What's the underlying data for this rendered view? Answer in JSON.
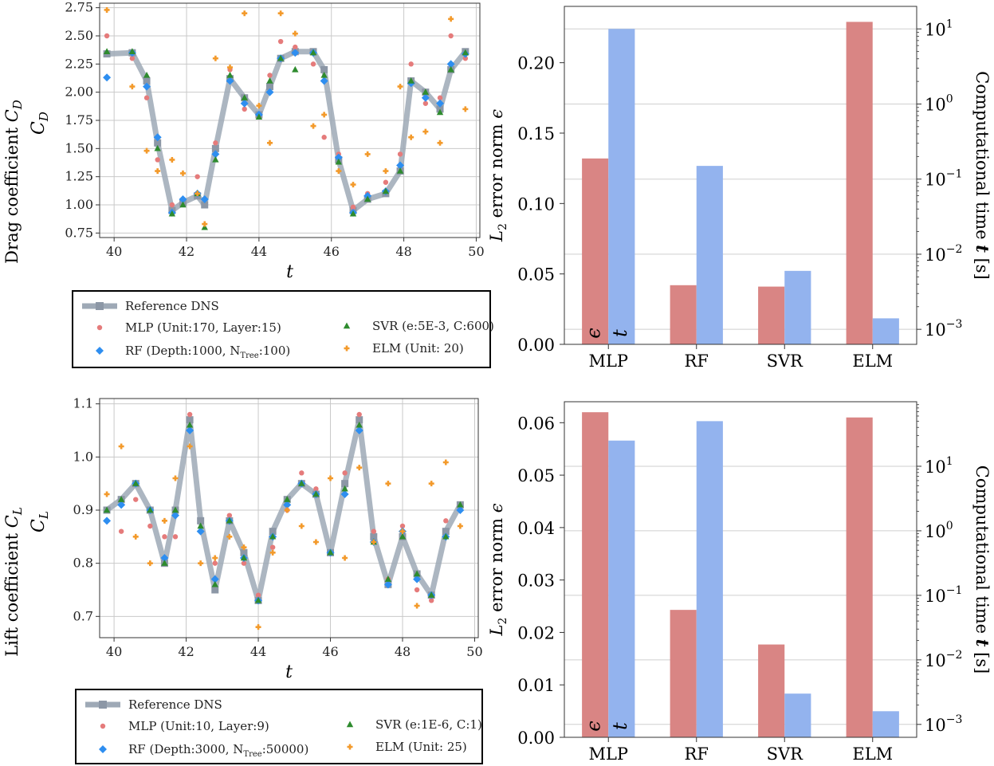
{
  "figure": {
    "panels_left": [
      {
        "side_label": "Drag coefficient",
        "side_symbol": "C",
        "side_sub": "D"
      },
      {
        "side_label": "Lift coefficient",
        "side_symbol": "C",
        "side_sub": "L"
      }
    ]
  },
  "chart_data": [
    {
      "type": "scatter",
      "title": "",
      "xlabel": "t",
      "ylabel": "C_D",
      "xlim": [
        39.6,
        50.1
      ],
      "ylim": [
        0.71,
        2.79
      ],
      "xticks": [
        "40",
        "42",
        "44",
        "46",
        "48",
        "50"
      ],
      "yticks": [
        "0.75",
        "1.00",
        "1.25",
        "1.50",
        "1.75",
        "2.00",
        "2.25",
        "2.50",
        "2.75"
      ],
      "grid": true,
      "legend_position": "below",
      "legend": [
        "Reference DNS",
        "MLP (Unit:170, Layer:15)",
        "RF (Depth:1000, N_Tree:100)",
        "SVR (e:5E-3, C:600)",
        "ELM (Unit: 20)"
      ],
      "x": [
        39.8,
        40.5,
        40.9,
        41.2,
        41.6,
        41.9,
        42.3,
        42.5,
        42.8,
        43.2,
        43.6,
        44.0,
        44.3,
        44.6,
        45.0,
        45.5,
        45.8,
        46.2,
        46.6,
        47.0,
        47.5,
        47.9,
        48.2,
        48.6,
        49.0,
        49.3,
        49.7
      ],
      "series": [
        {
          "name": "Reference DNS",
          "values": [
            2.34,
            2.35,
            2.1,
            1.55,
            0.95,
            1.02,
            1.08,
            1.0,
            1.5,
            2.12,
            1.95,
            1.8,
            2.05,
            2.3,
            2.36,
            2.36,
            2.2,
            1.4,
            0.95,
            1.05,
            1.1,
            1.3,
            2.1,
            2.0,
            1.85,
            2.2,
            2.36
          ]
        },
        {
          "name": "MLP (Unit:170, Layer:15)",
          "values": [
            2.5,
            2.3,
            1.95,
            1.4,
            1.0,
            1.05,
            1.25,
            1.05,
            1.55,
            2.2,
            1.85,
            1.78,
            2.15,
            2.45,
            2.4,
            2.25,
            1.6,
            1.45,
            0.98,
            1.1,
            1.2,
            1.45,
            2.25,
            1.9,
            1.95,
            2.5,
            2.3
          ]
        },
        {
          "name": "RF (Depth:1000, N_Tree:100)",
          "values": [
            2.13,
            2.35,
            2.05,
            1.6,
            0.93,
            1.05,
            1.1,
            1.05,
            1.45,
            2.1,
            1.9,
            1.8,
            2.0,
            2.3,
            2.35,
            2.35,
            2.1,
            1.42,
            0.93,
            1.08,
            1.12,
            1.35,
            2.08,
            1.95,
            1.9,
            2.25,
            2.34
          ]
        },
        {
          "name": "SVR (e:5E-3, C:600)",
          "values": [
            2.36,
            2.36,
            2.15,
            1.5,
            0.92,
            1.0,
            1.1,
            0.8,
            1.4,
            2.15,
            1.95,
            1.78,
            2.1,
            2.3,
            2.2,
            2.35,
            2.15,
            1.38,
            0.92,
            1.05,
            1.12,
            1.3,
            2.1,
            2.0,
            1.82,
            2.2,
            2.35
          ]
        },
        {
          "name": "ELM (Unit: 20)",
          "values": [
            2.73,
            2.05,
            1.48,
            1.3,
            1.4,
            1.28,
            1.1,
            0.83,
            2.3,
            2.22,
            2.7,
            1.88,
            1.55,
            2.7,
            2.52,
            1.7,
            1.8,
            1.3,
            1.18,
            1.45,
            1.3,
            2.05,
            1.6,
            1.65,
            1.55,
            2.65,
            1.85
          ]
        }
      ]
    },
    {
      "type": "scatter",
      "title": "",
      "xlabel": "t",
      "ylabel": "C_L",
      "xlim": [
        39.6,
        50.1
      ],
      "ylim": [
        0.66,
        1.11
      ],
      "xticks": [
        "40",
        "42",
        "44",
        "46",
        "48",
        "50"
      ],
      "yticks": [
        "0.7",
        "0.8",
        "0.9",
        "1.0",
        "1.1"
      ],
      "grid": true,
      "legend_position": "below",
      "legend": [
        "Reference DNS",
        "MLP (Unit:10, Layer:9)",
        "RF (Depth:3000, N_Tree:50000)",
        "SVR (e:1E-6, C:1)",
        "ELM (Unit: 25)"
      ],
      "x": [
        39.8,
        40.2,
        40.6,
        41.0,
        41.4,
        41.7,
        42.1,
        42.4,
        42.8,
        43.2,
        43.6,
        44.0,
        44.4,
        44.8,
        45.2,
        45.6,
        46.0,
        46.4,
        46.8,
        47.2,
        47.6,
        48.0,
        48.4,
        48.8,
        49.2,
        49.6
      ],
      "series": [
        {
          "name": "Reference DNS",
          "values": [
            0.9,
            0.92,
            0.95,
            0.9,
            0.8,
            0.9,
            1.07,
            0.88,
            0.75,
            0.88,
            0.82,
            0.73,
            0.86,
            0.92,
            0.95,
            0.93,
            0.82,
            0.95,
            1.07,
            0.85,
            0.76,
            0.85,
            0.78,
            0.74,
            0.86,
            0.91
          ]
        },
        {
          "name": "MLP (Unit:10, Layer:9)",
          "values": [
            0.88,
            0.86,
            0.92,
            0.87,
            0.85,
            0.85,
            1.08,
            0.86,
            0.8,
            0.89,
            0.8,
            0.74,
            0.83,
            0.9,
            0.97,
            0.94,
            0.82,
            0.97,
            1.08,
            0.86,
            0.77,
            0.87,
            0.75,
            0.73,
            0.88,
            0.9
          ]
        },
        {
          "name": "RF (Depth:3000, N_Tree:50000)",
          "values": [
            0.88,
            0.91,
            0.95,
            0.9,
            0.81,
            0.89,
            1.05,
            0.86,
            0.77,
            0.88,
            0.81,
            0.73,
            0.85,
            0.91,
            0.95,
            0.93,
            0.82,
            0.93,
            1.05,
            0.84,
            0.76,
            0.86,
            0.77,
            0.74,
            0.85,
            0.9
          ]
        },
        {
          "name": "SVR (e:1E-6, C:1)",
          "values": [
            0.9,
            0.92,
            0.95,
            0.9,
            0.8,
            0.9,
            1.06,
            0.87,
            0.76,
            0.88,
            0.81,
            0.73,
            0.85,
            0.92,
            0.95,
            0.93,
            0.82,
            0.94,
            1.06,
            0.84,
            0.77,
            0.85,
            0.78,
            0.74,
            0.85,
            0.91
          ]
        },
        {
          "name": "ELM (Unit: 25)",
          "values": [
            0.93,
            1.02,
            0.85,
            0.8,
            0.88,
            0.96,
            1.02,
            0.8,
            0.81,
            0.85,
            0.83,
            0.68,
            0.82,
            0.9,
            0.87,
            0.84,
            0.96,
            0.81,
            0.98,
            0.84,
            0.95,
            0.86,
            0.72,
            0.95,
            0.99,
            0.87
          ]
        }
      ]
    },
    {
      "type": "bar",
      "title": "",
      "xlabel": "",
      "ylabel_left": "L_2 error norm ϵ",
      "ylabel_right": "Computational time t [s]",
      "categories": [
        "MLP",
        "RF",
        "SVR",
        "ELM"
      ],
      "ylim_left": [
        0,
        0.24
      ],
      "yticks_left": [
        "0.00",
        "0.05",
        "0.10",
        "0.15",
        "0.20"
      ],
      "ylim_right_log10": [
        -3.2,
        1.3
      ],
      "right_scale": "log",
      "yticks_right": [
        "10^-3",
        "10^-2",
        "10^-1",
        "10^0",
        "10^1"
      ],
      "bar_marks": [
        "ϵ",
        "t"
      ],
      "series": [
        {
          "name": "ϵ",
          "axis": "left",
          "color": "#d98584",
          "values": [
            0.132,
            0.042,
            0.041,
            0.229
          ]
        },
        {
          "name": "t",
          "axis": "right",
          "color": "#93b3ee",
          "values": [
            10.0,
            0.15,
            0.006,
            0.0014
          ]
        }
      ]
    },
    {
      "type": "bar",
      "title": "",
      "xlabel": "",
      "ylabel_left": "L_2 error norm ϵ",
      "ylabel_right": "Computational time t [s]",
      "categories": [
        "MLP",
        "RF",
        "SVR",
        "ELM"
      ],
      "ylim_left": [
        0,
        0.064
      ],
      "yticks_left": [
        "0.00",
        "0.01",
        "0.02",
        "0.03",
        "0.04",
        "0.05",
        "0.06"
      ],
      "ylim_right_log10": [
        -3.2,
        2.0
      ],
      "right_scale": "log",
      "yticks_right": [
        "10^-3",
        "10^-2",
        "10^-1",
        "10^0",
        "10^1"
      ],
      "bar_marks": [
        "ϵ",
        "t"
      ],
      "series": [
        {
          "name": "ϵ",
          "axis": "left",
          "color": "#d98584",
          "values": [
            0.062,
            0.0243,
            0.0177,
            0.061
          ]
        },
        {
          "name": "t",
          "axis": "right",
          "color": "#93b3ee",
          "values": [
            25.0,
            50.0,
            0.003,
            0.0016
          ]
        }
      ]
    }
  ],
  "colors": {
    "reference": "#9ea9b6",
    "mlp": "#e57b7b",
    "rf": "#2e8ef0",
    "svr": "#2e8b2e",
    "elm": "#f39a2b",
    "bar_error": "#d98584",
    "bar_time": "#93b3ee"
  }
}
